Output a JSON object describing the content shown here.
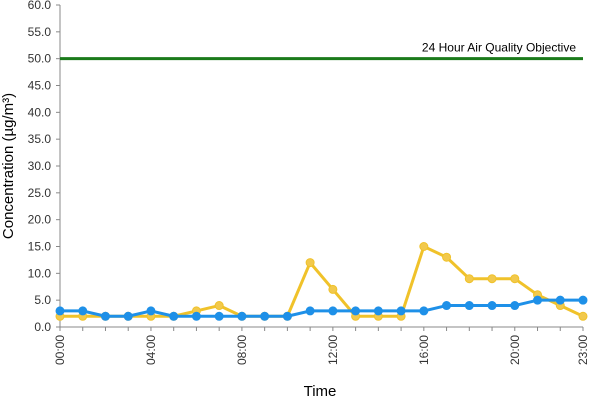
{
  "chart_data": {
    "type": "line",
    "xlabel": "Time",
    "ylabel": "Concentration (µg/m³)",
    "ylim": [
      0,
      60
    ],
    "yticks": [
      "0.0",
      "5.0",
      "10.0",
      "15.0",
      "20.0",
      "25.0",
      "30.0",
      "35.0",
      "40.0",
      "45.0",
      "50.0",
      "55.0",
      "60.0"
    ],
    "x_hours": [
      0,
      1,
      2,
      3,
      4,
      5,
      6,
      7,
      8,
      9,
      10,
      11,
      12,
      13,
      14,
      15,
      16,
      17,
      18,
      19,
      20,
      21,
      22,
      23
    ],
    "xtick_labels": [
      {
        "hour": 0,
        "label": "00:00"
      },
      {
        "hour": 4,
        "label": "04:00"
      },
      {
        "hour": 8,
        "label": "08:00"
      },
      {
        "hour": 12,
        "label": "12:00"
      },
      {
        "hour": 16,
        "label": "16:00"
      },
      {
        "hour": 20,
        "label": "20:00"
      },
      {
        "hour": 23,
        "label": "23:00"
      }
    ],
    "grid": false,
    "reference_line": {
      "value": 50,
      "label": "24 Hour Air Quality Objective",
      "color": "#1a7a1a"
    },
    "series": [
      {
        "color": "#f0c22a",
        "marker_fill": "#f2c94c",
        "values": [
          2,
          2,
          2,
          2,
          2,
          2,
          3,
          4,
          2,
          2,
          2,
          12,
          7,
          2,
          2,
          2,
          15,
          13,
          9,
          9,
          9,
          6,
          4,
          2
        ]
      },
      {
        "color": "#1e90e8",
        "marker_fill": "#1e90e8",
        "values": [
          3,
          3,
          2,
          2,
          3,
          2,
          2,
          2,
          2,
          2,
          2,
          3,
          3,
          3,
          3,
          3,
          3,
          4,
          4,
          4,
          4,
          5,
          5,
          5
        ]
      }
    ]
  }
}
